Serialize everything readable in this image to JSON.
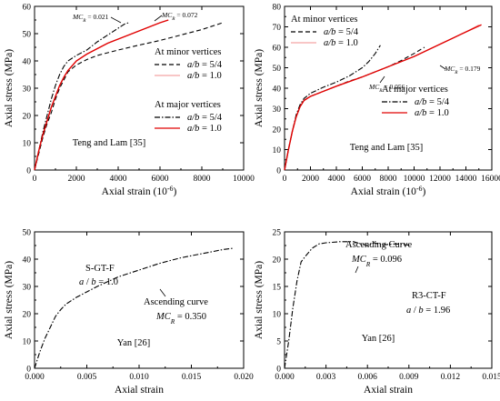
{
  "chart_data": [
    {
      "type": "line",
      "xlabel": "Axial strain (10",
      "xlabel_sup": "-6",
      "xlabel_tail": ")",
      "ylabel": "Axial stress (MPa)",
      "xlim": [
        0,
        10000
      ],
      "ylim": [
        0,
        60
      ],
      "xticks": [
        "0",
        "2000",
        "4000",
        "6000",
        "8000",
        "10000"
      ],
      "yticks": [
        "0",
        "10",
        "20",
        "30",
        "40",
        "50",
        "60"
      ],
      "legend_groups": [
        {
          "title": "At minor vertices",
          "entries": [
            {
              "label": "a/b = 5/4",
              "style": "dashed"
            },
            {
              "label": "a/b = 1.0",
              "style": "solid-pink"
            }
          ]
        },
        {
          "title": "At major vertices",
          "entries": [
            {
              "label": "a/b = 5/4",
              "style": "dashdot"
            },
            {
              "label": "a/b = 1.0",
              "style": "solid-red"
            }
          ]
        }
      ],
      "source_label": "Teng and Lam [35]",
      "annotations": [
        {
          "text": "MC",
          "sub": "R",
          "value": " = 0.021",
          "x": 4300,
          "y": 55
        },
        {
          "text": "MC",
          "sub": "R",
          "value": " = 0.072",
          "x": 6500,
          "y": 56
        }
      ],
      "series": [
        {
          "name": "At minor vertices a/b = 5/4",
          "color": "#000000",
          "dash": "dashed",
          "x": [
            0,
            200,
            400,
            600,
            800,
            1000,
            1200,
            1400,
            1600,
            2000,
            2500,
            3000,
            4000,
            5000,
            6000,
            7000,
            8000,
            9000
          ],
          "y": [
            0,
            6,
            12,
            17,
            21,
            26,
            30,
            33,
            36,
            38.5,
            40.5,
            42,
            44,
            45.8,
            47.5,
            49.5,
            51.5,
            54
          ]
        },
        {
          "name": "At minor vertices a/b = 1.0",
          "color": "#f4a3a3",
          "dash": "solid",
          "x": [
            0,
            200,
            400,
            600,
            800,
            1000,
            1200,
            1400,
            1600,
            2000,
            2500,
            3000,
            3500,
            4000,
            4500,
            5000,
            5500,
            6000,
            6400
          ],
          "y": [
            0,
            7,
            13,
            18,
            23,
            27,
            31,
            34,
            36.5,
            40,
            42.5,
            44.5,
            46.5,
            48,
            49.5,
            51,
            52.5,
            54,
            55
          ]
        },
        {
          "name": "At major vertices a/b = 5/4",
          "color": "#000000",
          "dash": "dashdot",
          "x": [
            0,
            200,
            400,
            600,
            800,
            1000,
            1200,
            1400,
            1600,
            2000,
            2500,
            3000,
            3500,
            4000,
            4300,
            4500
          ],
          "y": [
            0,
            7,
            14,
            20,
            26,
            31,
            35,
            38,
            40,
            42,
            44,
            47,
            49.5,
            52,
            53.5,
            54
          ]
        },
        {
          "name": "At major vertices a/b = 1.0",
          "color": "#e00000",
          "dash": "solid",
          "x": [
            0,
            200,
            400,
            600,
            800,
            1000,
            1200,
            1400,
            1600,
            2000,
            2500,
            3000,
            3500,
            4000,
            4500,
            5000,
            5500,
            6000,
            6400
          ],
          "y": [
            0,
            7,
            13,
            18,
            23,
            27,
            31,
            34,
            36.5,
            40,
            42.5,
            44.5,
            46.5,
            48,
            49.5,
            51,
            52.5,
            54,
            55
          ]
        }
      ]
    },
    {
      "type": "line",
      "xlabel": "Axial strain (10",
      "xlabel_sup": "-6",
      "xlabel_tail": ")",
      "ylabel": "Axial stress (MPa)",
      "xlim": [
        0,
        16000
      ],
      "ylim": [
        0,
        80
      ],
      "xticks": [
        "0",
        "2000",
        "4000",
        "6000",
        "8000",
        "10000",
        "12000",
        "14000",
        "16000"
      ],
      "yticks": [
        "0",
        "10",
        "20",
        "30",
        "40",
        "50",
        "60",
        "70",
        "80"
      ],
      "legend_groups": [
        {
          "title": "At minor vertices",
          "entries": [
            {
              "label": "a/b = 5/4",
              "style": "dashed"
            },
            {
              "label": "a/b = 1.0",
              "style": "solid-pink"
            }
          ]
        },
        {
          "title": "At major vertices",
          "entries": [
            {
              "label": "a/b = 5/4",
              "style": "dashdot"
            },
            {
              "label": "a/b = 1.0",
              "style": "solid-red"
            }
          ]
        }
      ],
      "source_label": "Teng and Lam [35]",
      "annotations": [
        {
          "text": "MC",
          "sub": "R",
          "value": " = 0.056",
          "x": 10400,
          "y": 47
        },
        {
          "text": "MC",
          "sub": "R",
          "value": " = 0.179",
          "x": 14000,
          "y": 63
        }
      ],
      "series": [
        {
          "name": "At minor vertices a/b = 5/4",
          "color": "#000000",
          "dash": "dashed",
          "x": [
            0,
            300,
            600,
            900,
            1200,
            1500,
            2000,
            3000,
            4000,
            5000,
            6000,
            7000,
            8000,
            9000,
            10000,
            10800
          ],
          "y": [
            0,
            10,
            19,
            26,
            31,
            34,
            36,
            38.5,
            41,
            43.5,
            45.5,
            48,
            50.5,
            53.5,
            57,
            60
          ]
        },
        {
          "name": "At minor vertices a/b = 1.0",
          "color": "#f4a3a3",
          "dash": "solid",
          "x": [
            0,
            300,
            600,
            900,
            1200,
            1500,
            2000,
            3000,
            4000,
            6000,
            8000,
            10000,
            12000,
            13000,
            14000,
            15000
          ],
          "y": [
            0,
            10,
            19,
            26,
            31,
            34,
            36,
            38.5,
            41,
            45.5,
            50.5,
            55.5,
            61.5,
            64.5,
            67.5,
            71
          ]
        },
        {
          "name": "At major vertices a/b = 5/4",
          "color": "#000000",
          "dash": "dashdot",
          "x": [
            0,
            300,
            600,
            900,
            1200,
            1500,
            2000,
            3000,
            4000,
            5000,
            6000,
            6500,
            7000,
            7400
          ],
          "y": [
            0,
            10,
            19,
            27,
            32,
            35,
            37.5,
            40.5,
            43,
            46,
            50,
            53,
            57,
            61
          ]
        },
        {
          "name": "At major vertices a/b = 1.0",
          "color": "#e00000",
          "dash": "solid",
          "x": [
            0,
            300,
            600,
            900,
            1200,
            1500,
            2000,
            3000,
            4000,
            6000,
            8000,
            10000,
            12000,
            13000,
            14000,
            15200
          ],
          "y": [
            0,
            10,
            19,
            26,
            31,
            34,
            36,
            38.5,
            41,
            45.5,
            50.5,
            55.5,
            61.5,
            64.5,
            67.5,
            71
          ]
        }
      ]
    },
    {
      "type": "line",
      "xlabel": "Axial strain",
      "ylabel": "Axial stress (MPa)",
      "xlim": [
        0,
        0.02
      ],
      "ylim": [
        0,
        50
      ],
      "xticks": [
        "0.000",
        "0.005",
        "0.010",
        "0.015",
        "0.020"
      ],
      "yticks": [
        "0",
        "10",
        "20",
        "30",
        "40",
        "50"
      ],
      "labels": [
        "S-GT-F",
        "a / b = 1.0",
        "Ascending curve",
        "MC",
        "R",
        " = 0.350",
        "Yan [26]"
      ],
      "series": [
        {
          "color": "#000000",
          "dash": "dashdot",
          "x": [
            0,
            0.0005,
            0.001,
            0.0015,
            0.002,
            0.0025,
            0.003,
            0.004,
            0.005,
            0.006,
            0.008,
            0.01,
            0.012,
            0.014,
            0.016,
            0.018,
            0.019
          ],
          "y": [
            0,
            6,
            11,
            15,
            19,
            21.5,
            23.5,
            26,
            28,
            30,
            33.5,
            36,
            38.5,
            40.5,
            42,
            43.5,
            44
          ]
        }
      ]
    },
    {
      "type": "line",
      "xlabel": "Axial strain",
      "ylabel": "Axial stress (MPa)",
      "xlim": [
        0,
        0.015
      ],
      "ylim": [
        0,
        25
      ],
      "xticks": [
        "0.000",
        "0.003",
        "0.006",
        "0.009",
        "0.012",
        "0.015"
      ],
      "yticks": [
        "0",
        "5",
        "10",
        "15",
        "20",
        "25"
      ],
      "labels": [
        "Ascending Curve",
        "MC",
        "R",
        " = 0.096",
        "R3-CT-F",
        "a / b = 1.96",
        "Yan [26]"
      ],
      "series": [
        {
          "color": "#000000",
          "dash": "dashdot",
          "x": [
            0,
            0.0003,
            0.0006,
            0.0009,
            0.0012,
            0.0015,
            0.002,
            0.0025,
            0.003,
            0.004,
            0.005,
            0.0055,
            0.006,
            0.0065,
            0.007,
            0.008,
            0.009
          ],
          "y": [
            0,
            5,
            11,
            16,
            19.5,
            20.5,
            22,
            22.8,
            23,
            23.2,
            23.2,
            22.8,
            22.5,
            23,
            22.6,
            22.8,
            22.6
          ]
        }
      ]
    }
  ]
}
